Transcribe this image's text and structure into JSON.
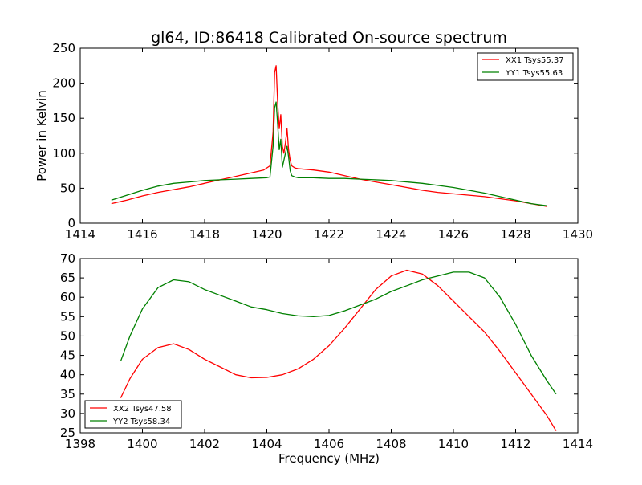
{
  "figure": {
    "title": "gl64, ID:86418 Calibrated On-source spectrum",
    "colors": {
      "red": "#ff0000",
      "green": "#008000",
      "axes": "#000000",
      "background": "#ffffff"
    }
  },
  "chart_data": [
    {
      "type": "line",
      "title": "gl64, ID:86418 Calibrated On-source spectrum",
      "xlabel": "",
      "ylabel": "Power in Kelvin",
      "xlim": [
        1414,
        1430
      ],
      "ylim": [
        0,
        250
      ],
      "xticks": [
        1414,
        1416,
        1418,
        1420,
        1422,
        1424,
        1426,
        1428,
        1430
      ],
      "yticks": [
        0,
        50,
        100,
        150,
        200,
        250
      ],
      "grid": false,
      "legend_position": "top-right",
      "series": [
        {
          "name": "XX1 Tsys55.37",
          "color": "#ff0000",
          "x": [
            1415.0,
            1415.5,
            1416.0,
            1416.5,
            1417.0,
            1417.5,
            1418.0,
            1418.5,
            1419.0,
            1419.5,
            1419.9,
            1420.1,
            1420.2,
            1420.25,
            1420.3,
            1420.35,
            1420.4,
            1420.45,
            1420.5,
            1420.55,
            1420.6,
            1420.65,
            1420.7,
            1420.75,
            1420.8,
            1420.9,
            1421.0,
            1421.5,
            1422.0,
            1422.5,
            1423.0,
            1423.5,
            1424.0,
            1424.5,
            1425.0,
            1425.5,
            1426.0,
            1426.5,
            1427.0,
            1427.5,
            1428.0,
            1428.5,
            1429.0
          ],
          "y": [
            28,
            33,
            39,
            44,
            48,
            52,
            57,
            62,
            67,
            72,
            76,
            82,
            130,
            215,
            225,
            170,
            135,
            155,
            110,
            100,
            115,
            135,
            105,
            90,
            82,
            79,
            78,
            76,
            73,
            68,
            63,
            59,
            55,
            51,
            47,
            44,
            42,
            40,
            38,
            35,
            32,
            28,
            24
          ]
        },
        {
          "name": "YY1 Tsys55.63",
          "color": "#008000",
          "x": [
            1415.0,
            1415.5,
            1416.0,
            1416.5,
            1417.0,
            1417.5,
            1418.0,
            1418.5,
            1419.0,
            1419.5,
            1420.0,
            1420.1,
            1420.2,
            1420.25,
            1420.3,
            1420.35,
            1420.4,
            1420.45,
            1420.5,
            1420.55,
            1420.6,
            1420.65,
            1420.7,
            1420.75,
            1420.8,
            1420.9,
            1421.0,
            1421.5,
            1422.0,
            1422.5,
            1423.0,
            1423.5,
            1424.0,
            1424.5,
            1425.0,
            1425.5,
            1426.0,
            1426.5,
            1427.0,
            1427.5,
            1428.0,
            1428.5,
            1429.0
          ],
          "y": [
            33,
            40,
            47,
            53,
            57,
            59,
            61,
            62,
            63,
            64,
            65,
            66,
            110,
            165,
            173,
            140,
            105,
            120,
            80,
            90,
            100,
            110,
            95,
            75,
            68,
            66,
            65,
            65,
            64,
            64,
            63,
            62,
            61,
            59,
            57,
            54,
            51,
            47,
            43,
            38,
            33,
            28,
            25
          ]
        }
      ]
    },
    {
      "type": "line",
      "title": "",
      "xlabel": "Frequency (MHz)",
      "ylabel": "",
      "xlim": [
        1398,
        1414
      ],
      "ylim": [
        25,
        70
      ],
      "xticks": [
        1398,
        1400,
        1402,
        1404,
        1406,
        1408,
        1410,
        1412,
        1414
      ],
      "yticks": [
        25,
        30,
        35,
        40,
        45,
        50,
        55,
        60,
        65,
        70
      ],
      "grid": false,
      "legend_position": "lower-left",
      "series": [
        {
          "name": "XX2 Tsys47.58",
          "color": "#ff0000",
          "x": [
            1399.3,
            1399.6,
            1400.0,
            1400.5,
            1401.0,
            1401.5,
            1402.0,
            1402.5,
            1403.0,
            1403.5,
            1404.0,
            1404.5,
            1405.0,
            1405.5,
            1406.0,
            1406.5,
            1407.0,
            1407.5,
            1408.0,
            1408.5,
            1409.0,
            1409.5,
            1410.0,
            1410.5,
            1411.0,
            1411.5,
            1412.0,
            1412.5,
            1413.0,
            1413.3
          ],
          "y": [
            34,
            39,
            44,
            47,
            48,
            46.5,
            44,
            42,
            40,
            39.2,
            39.3,
            40,
            41.5,
            44,
            47.5,
            52,
            57,
            62,
            65.5,
            67,
            66,
            63,
            59,
            55,
            51,
            46,
            40.5,
            35,
            29.5,
            25.5
          ]
        },
        {
          "name": "YY2 Tsys58.34",
          "color": "#008000",
          "x": [
            1399.3,
            1399.6,
            1400.0,
            1400.5,
            1401.0,
            1401.5,
            1402.0,
            1402.5,
            1403.0,
            1403.5,
            1404.0,
            1404.5,
            1405.0,
            1405.5,
            1406.0,
            1406.5,
            1407.0,
            1407.5,
            1408.0,
            1408.5,
            1409.0,
            1409.5,
            1410.0,
            1410.5,
            1411.0,
            1411.5,
            1412.0,
            1412.5,
            1413.0,
            1413.3
          ],
          "y": [
            43.5,
            50,
            57,
            62.5,
            64.5,
            64,
            62,
            60.5,
            59,
            57.5,
            56.8,
            55.8,
            55.2,
            55,
            55.3,
            56.5,
            58,
            59.5,
            61.5,
            63,
            64.5,
            65.5,
            66.5,
            66.5,
            65,
            60,
            53,
            45,
            38.5,
            35
          ]
        }
      ]
    }
  ]
}
